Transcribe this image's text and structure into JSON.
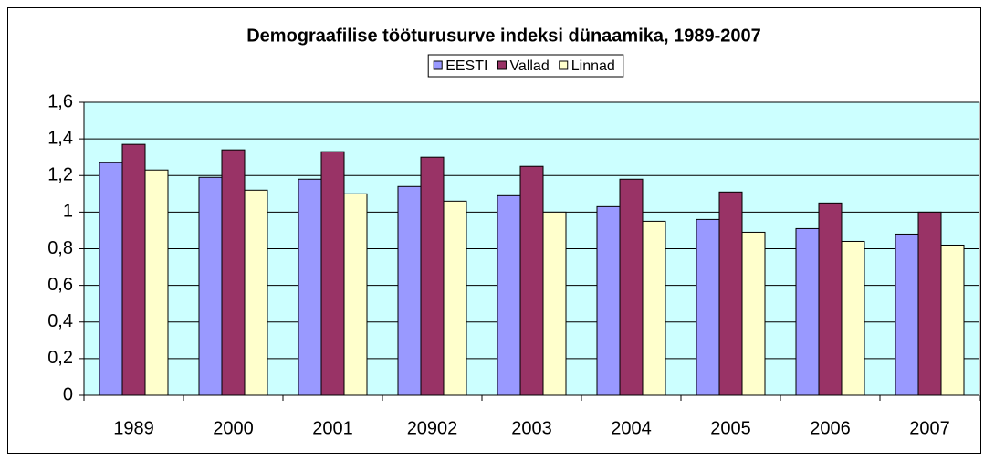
{
  "chart_data": {
    "type": "bar",
    "title": "Demograafilise tööturusurve indeksi dünaamika, 1989-2007",
    "categories": [
      "1989",
      "2000",
      "2001",
      "20902",
      "2003",
      "2004",
      "2005",
      "2006",
      "2007"
    ],
    "series": [
      {
        "name": "EESTI",
        "color": "#9999ff",
        "values": [
          1.27,
          1.19,
          1.18,
          1.14,
          1.09,
          1.03,
          0.96,
          0.91,
          0.88
        ]
      },
      {
        "name": "Vallad",
        "color": "#993366",
        "values": [
          1.37,
          1.34,
          1.33,
          1.3,
          1.25,
          1.18,
          1.11,
          1.05,
          1.0
        ]
      },
      {
        "name": "Linnad",
        "color": "#ffffcc",
        "values": [
          1.23,
          1.12,
          1.1,
          1.06,
          1.0,
          0.95,
          0.89,
          0.84,
          0.82
        ]
      }
    ],
    "ylim": [
      0,
      1.6
    ],
    "yticks": [
      0,
      {
        "value": 0.2,
        "label": "0,2"
      },
      {
        "value": 0.4,
        "label": "0,4"
      },
      {
        "value": 0.6,
        "label": "0,6"
      },
      {
        "value": 0.8,
        "label": "0,8"
      },
      1,
      {
        "value": 1.2,
        "label": "1,2"
      },
      {
        "value": 1.4,
        "label": "1,4"
      },
      {
        "value": 1.6,
        "label": "1,6"
      }
    ],
    "grid": true,
    "legend": "top"
  }
}
